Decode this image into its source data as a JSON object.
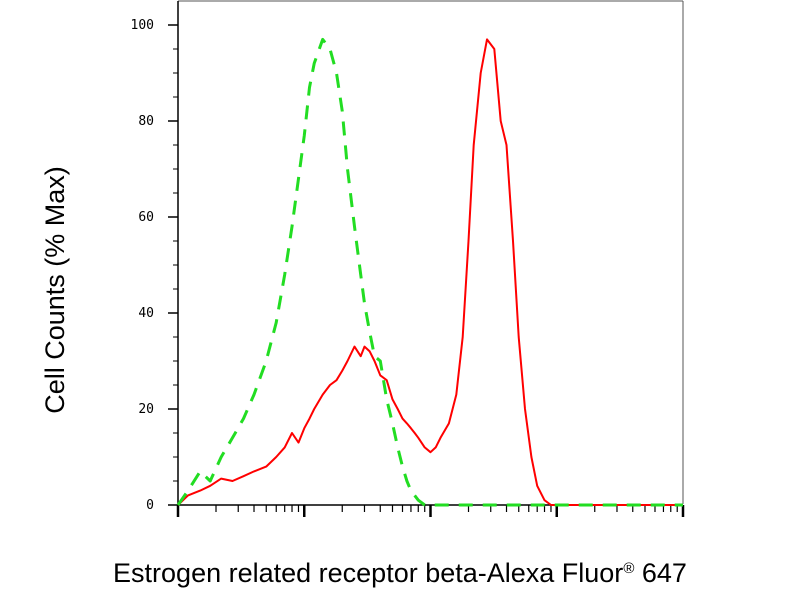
{
  "chart_data": {
    "type": "line",
    "title": "",
    "xlabel": "Estrogen related receptor beta-Alexa Fluor",
    "xlabel_mark": "®",
    "xlabel_suffix": "647",
    "ylabel": "Cell Counts (% Max)",
    "xscale": "log",
    "ylim": [
      0,
      100
    ],
    "xlim": [
      1,
      10000
    ],
    "yticks": [
      0,
      20,
      40,
      60,
      80,
      100
    ],
    "ytick_labels": [
      "0",
      "20",
      "40",
      "60",
      "80",
      "100"
    ],
    "grid": false,
    "legend": "none",
    "series": [
      {
        "color": "#ff0000",
        "style": "solid",
        "x": [
          1,
          1.2,
          1.5,
          1.8,
          2.2,
          2.7,
          3.3,
          4,
          5,
          6,
          7,
          8,
          9,
          10,
          11,
          12,
          14,
          16,
          18,
          20,
          22,
          25,
          28,
          30,
          33,
          36,
          40,
          45,
          50,
          55,
          60,
          65,
          70,
          75,
          80,
          90,
          100,
          110,
          120,
          140,
          160,
          180,
          200,
          220,
          250,
          280,
          320,
          360,
          400,
          450,
          500,
          560,
          630,
          700,
          800,
          900,
          1000,
          1100,
          1200,
          1400,
          1600,
          1800,
          2000,
          2200,
          2500,
          3000,
          4000,
          5000,
          7000,
          10000
        ],
        "y": [
          0,
          2,
          3,
          4,
          5.5,
          5,
          6,
          7,
          8,
          10,
          12,
          15,
          13,
          16,
          18,
          20,
          23,
          25,
          26,
          28,
          30,
          33,
          31,
          33,
          32,
          30,
          27,
          26,
          22,
          20,
          18,
          17,
          16,
          15,
          14,
          12,
          11,
          12,
          14,
          17,
          23,
          35,
          55,
          75,
          90,
          97,
          95,
          80,
          75,
          55,
          35,
          20,
          10,
          4,
          1,
          0,
          0,
          0,
          0,
          0,
          0,
          0,
          0,
          0,
          0,
          0,
          0,
          0,
          0,
          0
        ]
      },
      {
        "color": "#22dd22",
        "style": "dashed",
        "x": [
          1,
          1.2,
          1.5,
          1.8,
          2.2,
          2.7,
          3.3,
          4,
          5,
          6,
          7,
          8,
          9,
          10,
          11,
          12,
          14,
          16,
          18,
          20,
          22,
          25,
          28,
          30,
          33,
          36,
          40,
          45,
          50,
          55,
          60,
          65,
          70,
          80,
          90,
          100,
          120,
          150,
          200,
          300,
          500,
          1000,
          2000,
          5000,
          10000
        ],
        "y": [
          0,
          3,
          7,
          5,
          10,
          14,
          18,
          23,
          30,
          38,
          48,
          58,
          68,
          77,
          87,
          92,
          97,
          95,
          90,
          82,
          70,
          58,
          48,
          42,
          36,
          31,
          30,
          22,
          17,
          12,
          8,
          5,
          3,
          1,
          0,
          0,
          0,
          0,
          0,
          0,
          0,
          0,
          0,
          0,
          0
        ]
      }
    ]
  }
}
